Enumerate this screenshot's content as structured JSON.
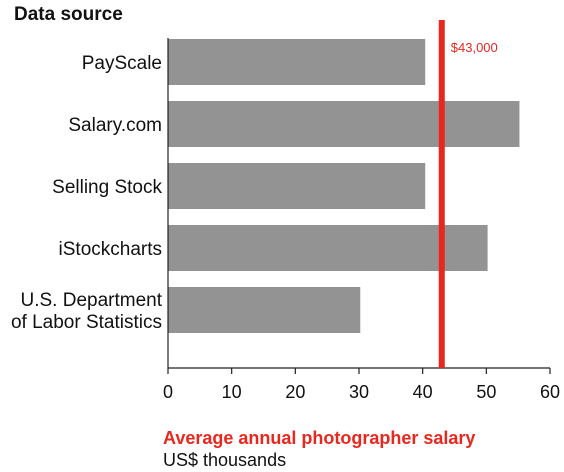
{
  "chart_data": {
    "type": "bar",
    "orientation": "horizontal",
    "category_header": "Data source",
    "categories": [
      [
        "PayScale"
      ],
      [
        "Salary.com"
      ],
      [
        "Selling Stock"
      ],
      [
        "iStockcharts"
      ],
      [
        "U.S. Department",
        "of Labor Statistics"
      ]
    ],
    "values": [
      40.4,
      55.2,
      40.4,
      50.2,
      30.2
    ],
    "xlim": [
      0,
      60
    ],
    "xticks": [
      0,
      10,
      20,
      30,
      40,
      50,
      60
    ],
    "reference_line": {
      "value": 43,
      "label": "$43,000"
    },
    "xlabel": "Average annual photographer salary",
    "xunit": "US$ thousands",
    "grid": false,
    "colors": {
      "bar": "#939393",
      "reference": "#e8281e",
      "axis": "#222222"
    }
  }
}
